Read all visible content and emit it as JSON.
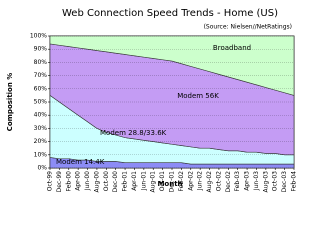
{
  "chart_data": {
    "type": "stacked_area",
    "title": "Web Connection Speed Trends - Home (US)",
    "subtitle": "(Source: Nielsen//NetRatings)",
    "x_label": "Month",
    "y_label": "Composition %",
    "categories": [
      "Oct-99",
      "Dec-99",
      "Feb-00",
      "Apr-00",
      "Jun-00",
      "Aug-00",
      "Oct-00",
      "Dec-00",
      "Feb-01",
      "Apr-01",
      "Jun-01",
      "Aug-01",
      "Oct-01",
      "Dec-01",
      "Feb-02",
      "Apr-02",
      "Jun-02",
      "Aug-02",
      "Oct-02",
      "Dec-02",
      "Feb-03",
      "Apr-03",
      "Jun-03",
      "Aug-03",
      "Oct-03",
      "Dec-03",
      "Feb-04"
    ],
    "series": [
      {
        "name": "Modem 14.4K",
        "color": "#8c8cf5",
        "values": [
          8,
          7,
          7,
          6,
          6,
          5,
          5,
          5,
          4,
          4,
          4,
          4,
          4,
          4,
          4,
          3,
          3,
          3,
          3,
          3,
          3,
          3,
          3,
          3,
          3,
          3,
          3
        ]
      },
      {
        "name": "Modem 28.8/33.6K",
        "color": "#ccffff",
        "values": [
          47,
          43,
          38,
          34,
          29,
          25,
          22,
          20,
          19,
          18,
          17,
          16,
          15,
          14,
          13,
          13,
          12,
          12,
          11,
          10,
          10,
          9,
          9,
          8,
          8,
          7,
          7
        ]
      },
      {
        "name": "Modem 56K",
        "color": "#c49cf4",
        "values": [
          39,
          43,
          47,
          51,
          55,
          59,
          61,
          62,
          63,
          63,
          63,
          63,
          63,
          63,
          62,
          61,
          60,
          58,
          57,
          56,
          54,
          53,
          51,
          50,
          48,
          47,
          45
        ]
      },
      {
        "name": "Broadband",
        "color": "#ccffcc",
        "values": [
          6,
          7,
          8,
          9,
          10,
          11,
          12,
          13,
          14,
          15,
          16,
          17,
          18,
          19,
          21,
          23,
          25,
          27,
          29,
          31,
          33,
          35,
          37,
          39,
          41,
          43,
          45
        ]
      }
    ],
    "ylim": [
      0,
      100
    ],
    "yticks": [
      {
        "value": 0,
        "label": "0%"
      },
      {
        "value": 10,
        "label": "10%"
      },
      {
        "value": 20,
        "label": "20%"
      },
      {
        "value": 30,
        "label": "30%"
      },
      {
        "value": 40,
        "label": "40%"
      },
      {
        "value": 50,
        "label": "50%"
      },
      {
        "value": 60,
        "label": "60%"
      },
      {
        "value": 70,
        "label": "70%"
      },
      {
        "value": 80,
        "label": "80%"
      },
      {
        "value": 90,
        "label": "90%"
      },
      {
        "value": 100,
        "label": "100%"
      }
    ],
    "grid": true
  }
}
